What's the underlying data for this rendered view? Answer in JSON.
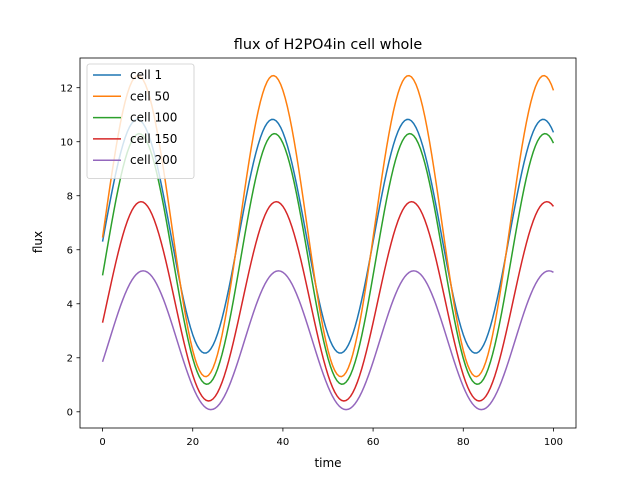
{
  "chart_data": {
    "type": "line",
    "title": "flux of H2PO4in cell whole",
    "xlabel": "time",
    "ylabel": "flux",
    "xlim": [
      -5,
      105
    ],
    "ylim": [
      -0.6,
      13.1
    ],
    "xticks": [
      0,
      20,
      40,
      60,
      80,
      100
    ],
    "yticks": [
      0,
      2,
      4,
      6,
      8,
      10,
      12
    ],
    "grid": false,
    "legend": "top-left",
    "x_range": [
      0,
      100
    ],
    "period": 30,
    "series": [
      {
        "name": "cell 1",
        "color": "#1f77b4",
        "start": 6.3,
        "peak": 10.83,
        "trough": 2.17
      },
      {
        "name": "cell 50",
        "color": "#ff7f0e",
        "start": 6.45,
        "peak": 12.45,
        "trough": 1.3
      },
      {
        "name": "cell 100",
        "color": "#2ca02c",
        "start": 5.05,
        "peak": 10.3,
        "trough": 1.02
      },
      {
        "name": "cell 150",
        "color": "#d62728",
        "start": 3.3,
        "peak": 7.78,
        "trough": 0.4
      },
      {
        "name": "cell 200",
        "color": "#9467bd",
        "start": 1.85,
        "peak": 5.22,
        "trough": 0.08
      }
    ]
  }
}
